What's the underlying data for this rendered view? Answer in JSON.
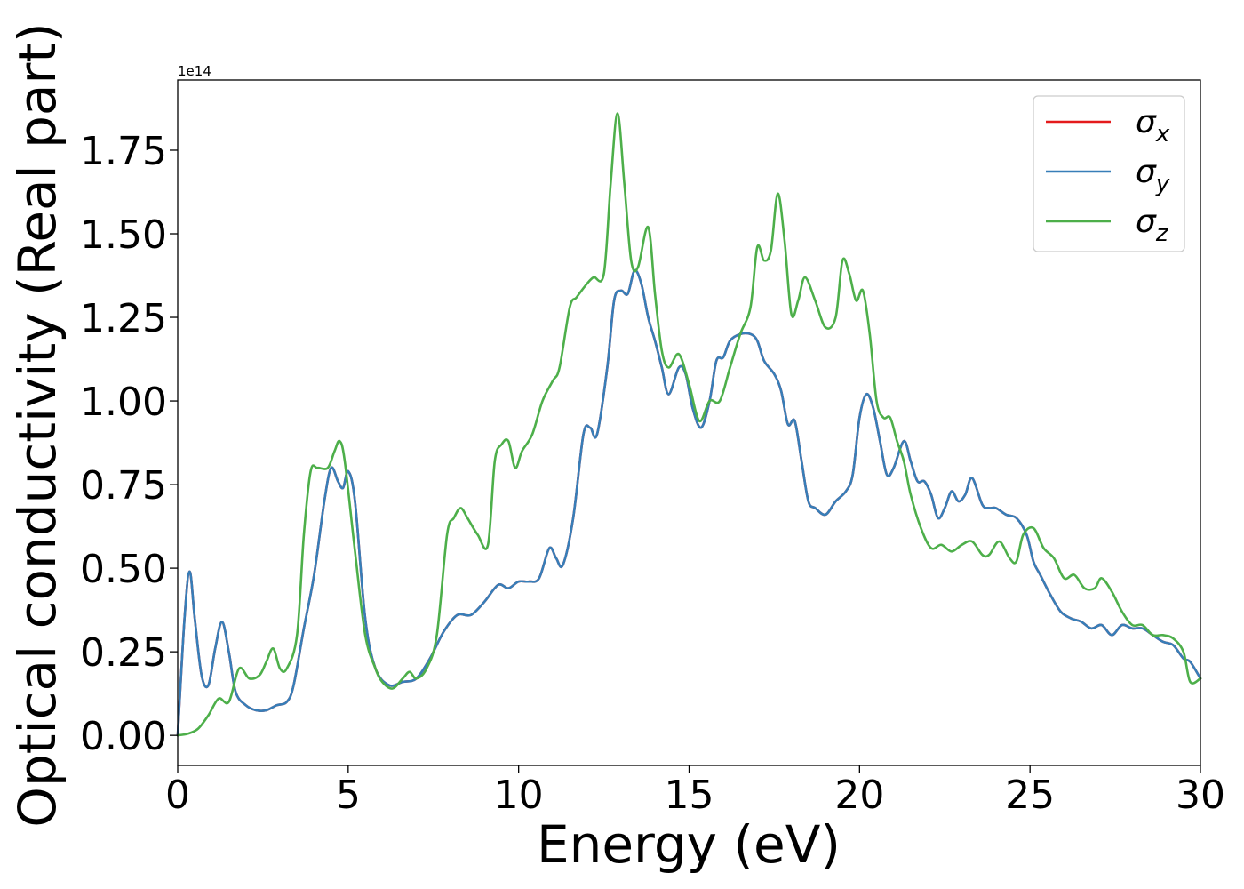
{
  "chart_data": {
    "type": "line",
    "title": "",
    "xlabel": "Energy (eV)",
    "ylabel": "Optical conductivity (Real part)",
    "y_offset_label": "1e14",
    "xlim": [
      0,
      30
    ],
    "ylim": [
      -0.09,
      1.96
    ],
    "x_ticks": [
      0,
      5,
      10,
      15,
      20,
      25,
      30
    ],
    "x_tick_labels": [
      "0",
      "5",
      "10",
      "15",
      "20",
      "25",
      "30"
    ],
    "y_ticks": [
      0.0,
      0.25,
      0.5,
      0.75,
      1.0,
      1.25,
      1.5,
      1.75
    ],
    "y_tick_labels": [
      "0.00",
      "0.25",
      "0.50",
      "0.75",
      "1.00",
      "1.25",
      "1.50",
      "1.75"
    ],
    "grid": false,
    "legend_position": "top-right",
    "series": [
      {
        "name": "σx",
        "legend_base": "σ",
        "legend_sub": "x",
        "color": "#e41a1c",
        "x": [
          0,
          0.2,
          0.35,
          0.5,
          0.7,
          0.9,
          1.1,
          1.3,
          1.5,
          1.7,
          2.0,
          2.3,
          2.6,
          2.9,
          3.2,
          3.4,
          3.7,
          4.0,
          4.3,
          4.5,
          4.7,
          4.85,
          5.0,
          5.2,
          5.5,
          5.8,
          6.2,
          6.6,
          7.0,
          7.4,
          7.8,
          8.2,
          8.6,
          9.0,
          9.4,
          9.7,
          10.0,
          10.3,
          10.6,
          10.9,
          11.1,
          11.3,
          11.6,
          11.9,
          12.1,
          12.3,
          12.6,
          12.8,
          13.0,
          13.2,
          13.4,
          13.6,
          13.8,
          14.0,
          14.2,
          14.4,
          14.7,
          14.9,
          15.1,
          15.35,
          15.6,
          15.8,
          16.0,
          16.2,
          16.5,
          16.8,
          17.0,
          17.2,
          17.5,
          17.7,
          17.9,
          18.1,
          18.3,
          18.5,
          18.7,
          19.0,
          19.3,
          19.6,
          19.8,
          20.0,
          20.2,
          20.4,
          20.6,
          20.8,
          21.0,
          21.3,
          21.5,
          21.7,
          21.9,
          22.1,
          22.3,
          22.5,
          22.7,
          22.9,
          23.1,
          23.3,
          23.6,
          23.8,
          24.0,
          24.3,
          24.6,
          24.9,
          25.1,
          25.3,
          25.6,
          25.9,
          26.2,
          26.5,
          26.8,
          27.1,
          27.4,
          27.7,
          28.0,
          28.3,
          28.6,
          28.9,
          29.2,
          29.5,
          29.7,
          30.0
        ],
        "values": [
          0.0,
          0.35,
          0.49,
          0.35,
          0.18,
          0.15,
          0.26,
          0.34,
          0.25,
          0.13,
          0.09,
          0.075,
          0.075,
          0.09,
          0.1,
          0.15,
          0.32,
          0.48,
          0.7,
          0.8,
          0.76,
          0.74,
          0.79,
          0.7,
          0.35,
          0.2,
          0.15,
          0.16,
          0.17,
          0.23,
          0.31,
          0.36,
          0.36,
          0.4,
          0.45,
          0.44,
          0.46,
          0.46,
          0.47,
          0.56,
          0.53,
          0.51,
          0.65,
          0.9,
          0.92,
          0.9,
          1.1,
          1.3,
          1.33,
          1.32,
          1.39,
          1.35,
          1.25,
          1.18,
          1.1,
          1.02,
          1.1,
          1.08,
          0.98,
          0.92,
          1.0,
          1.12,
          1.13,
          1.18,
          1.2,
          1.2,
          1.18,
          1.12,
          1.08,
          1.03,
          0.93,
          0.94,
          0.82,
          0.7,
          0.68,
          0.66,
          0.7,
          0.73,
          0.78,
          0.95,
          1.02,
          0.98,
          0.88,
          0.78,
          0.8,
          0.88,
          0.82,
          0.76,
          0.76,
          0.72,
          0.65,
          0.68,
          0.73,
          0.7,
          0.72,
          0.77,
          0.69,
          0.68,
          0.68,
          0.66,
          0.65,
          0.6,
          0.52,
          0.48,
          0.42,
          0.37,
          0.35,
          0.34,
          0.32,
          0.33,
          0.3,
          0.33,
          0.32,
          0.32,
          0.3,
          0.28,
          0.27,
          0.23,
          0.22,
          0.17
        ]
      },
      {
        "name": "σy",
        "legend_base": "σ",
        "legend_sub": "y",
        "color": "#377eb8",
        "x": [
          0,
          0.2,
          0.35,
          0.5,
          0.7,
          0.9,
          1.1,
          1.3,
          1.5,
          1.7,
          2.0,
          2.3,
          2.6,
          2.9,
          3.2,
          3.4,
          3.7,
          4.0,
          4.3,
          4.5,
          4.7,
          4.85,
          5.0,
          5.2,
          5.5,
          5.8,
          6.2,
          6.6,
          7.0,
          7.4,
          7.8,
          8.2,
          8.6,
          9.0,
          9.4,
          9.7,
          10.0,
          10.3,
          10.6,
          10.9,
          11.1,
          11.3,
          11.6,
          11.9,
          12.1,
          12.3,
          12.6,
          12.8,
          13.0,
          13.2,
          13.4,
          13.6,
          13.8,
          14.0,
          14.2,
          14.4,
          14.7,
          14.9,
          15.1,
          15.35,
          15.6,
          15.8,
          16.0,
          16.2,
          16.5,
          16.8,
          17.0,
          17.2,
          17.5,
          17.7,
          17.9,
          18.1,
          18.3,
          18.5,
          18.7,
          19.0,
          19.3,
          19.6,
          19.8,
          20.0,
          20.2,
          20.4,
          20.6,
          20.8,
          21.0,
          21.3,
          21.5,
          21.7,
          21.9,
          22.1,
          22.3,
          22.5,
          22.7,
          22.9,
          23.1,
          23.3,
          23.6,
          23.8,
          24.0,
          24.3,
          24.6,
          24.9,
          25.1,
          25.3,
          25.6,
          25.9,
          26.2,
          26.5,
          26.8,
          27.1,
          27.4,
          27.7,
          28.0,
          28.3,
          28.6,
          28.9,
          29.2,
          29.5,
          29.7,
          30.0
        ],
        "values": [
          0.0,
          0.35,
          0.49,
          0.35,
          0.18,
          0.15,
          0.26,
          0.34,
          0.25,
          0.13,
          0.09,
          0.075,
          0.075,
          0.09,
          0.1,
          0.15,
          0.32,
          0.48,
          0.7,
          0.8,
          0.76,
          0.74,
          0.79,
          0.7,
          0.35,
          0.2,
          0.15,
          0.16,
          0.17,
          0.23,
          0.31,
          0.36,
          0.36,
          0.4,
          0.45,
          0.44,
          0.46,
          0.46,
          0.47,
          0.56,
          0.53,
          0.51,
          0.65,
          0.9,
          0.92,
          0.9,
          1.1,
          1.3,
          1.33,
          1.32,
          1.39,
          1.35,
          1.25,
          1.18,
          1.1,
          1.02,
          1.1,
          1.08,
          0.98,
          0.92,
          1.0,
          1.12,
          1.13,
          1.18,
          1.2,
          1.2,
          1.18,
          1.12,
          1.08,
          1.03,
          0.93,
          0.94,
          0.82,
          0.7,
          0.68,
          0.66,
          0.7,
          0.73,
          0.78,
          0.95,
          1.02,
          0.98,
          0.88,
          0.78,
          0.8,
          0.88,
          0.82,
          0.76,
          0.76,
          0.72,
          0.65,
          0.68,
          0.73,
          0.7,
          0.72,
          0.77,
          0.69,
          0.68,
          0.68,
          0.66,
          0.65,
          0.6,
          0.52,
          0.48,
          0.42,
          0.37,
          0.35,
          0.34,
          0.32,
          0.33,
          0.3,
          0.33,
          0.32,
          0.32,
          0.3,
          0.28,
          0.27,
          0.23,
          0.22,
          0.17
        ]
      },
      {
        "name": "σz",
        "legend_base": "σ",
        "legend_sub": "z",
        "color": "#4daf4a",
        "x": [
          0,
          0.3,
          0.6,
          0.9,
          1.2,
          1.5,
          1.8,
          2.1,
          2.4,
          2.6,
          2.8,
          3.0,
          3.2,
          3.5,
          3.7,
          3.9,
          4.1,
          4.4,
          4.6,
          4.75,
          4.9,
          5.2,
          5.5,
          5.8,
          6.0,
          6.3,
          6.6,
          6.8,
          7.0,
          7.3,
          7.6,
          7.9,
          8.1,
          8.3,
          8.5,
          8.8,
          9.1,
          9.3,
          9.5,
          9.7,
          9.9,
          10.1,
          10.4,
          10.7,
          11.0,
          11.2,
          11.5,
          11.7,
          12.0,
          12.2,
          12.5,
          12.7,
          12.9,
          13.1,
          13.3,
          13.5,
          13.8,
          14.0,
          14.2,
          14.4,
          14.7,
          15.0,
          15.3,
          15.6,
          15.9,
          16.2,
          16.5,
          16.8,
          17.0,
          17.2,
          17.4,
          17.6,
          17.8,
          18.0,
          18.2,
          18.4,
          18.7,
          19.0,
          19.3,
          19.5,
          19.7,
          19.9,
          20.1,
          20.3,
          20.5,
          20.7,
          20.9,
          21.1,
          21.3,
          21.5,
          21.8,
          22.1,
          22.4,
          22.7,
          23.0,
          23.3,
          23.6,
          23.8,
          24.1,
          24.4,
          24.6,
          24.8,
          25.1,
          25.4,
          25.7,
          26.0,
          26.3,
          26.6,
          26.9,
          27.1,
          27.4,
          27.7,
          28.0,
          28.3,
          28.6,
          28.9,
          29.2,
          29.5,
          29.7,
          30.0
        ],
        "values": [
          0.0,
          0.005,
          0.02,
          0.06,
          0.11,
          0.1,
          0.2,
          0.17,
          0.18,
          0.22,
          0.26,
          0.2,
          0.2,
          0.3,
          0.6,
          0.79,
          0.8,
          0.8,
          0.85,
          0.88,
          0.82,
          0.55,
          0.3,
          0.2,
          0.16,
          0.14,
          0.17,
          0.19,
          0.17,
          0.2,
          0.3,
          0.6,
          0.65,
          0.68,
          0.65,
          0.6,
          0.57,
          0.82,
          0.87,
          0.88,
          0.8,
          0.85,
          0.9,
          1.0,
          1.06,
          1.1,
          1.28,
          1.31,
          1.35,
          1.37,
          1.38,
          1.65,
          1.86,
          1.65,
          1.42,
          1.4,
          1.52,
          1.32,
          1.15,
          1.1,
          1.14,
          1.05,
          0.94,
          1.0,
          1.0,
          1.1,
          1.2,
          1.28,
          1.46,
          1.42,
          1.45,
          1.62,
          1.48,
          1.26,
          1.3,
          1.37,
          1.3,
          1.22,
          1.25,
          1.42,
          1.38,
          1.3,
          1.33,
          1.2,
          1.0,
          0.95,
          0.95,
          0.88,
          0.82,
          0.72,
          0.62,
          0.56,
          0.57,
          0.55,
          0.57,
          0.58,
          0.54,
          0.54,
          0.58,
          0.53,
          0.52,
          0.6,
          0.62,
          0.56,
          0.53,
          0.47,
          0.48,
          0.44,
          0.44,
          0.47,
          0.43,
          0.37,
          0.33,
          0.33,
          0.3,
          0.3,
          0.29,
          0.25,
          0.16,
          0.17
        ]
      }
    ]
  }
}
